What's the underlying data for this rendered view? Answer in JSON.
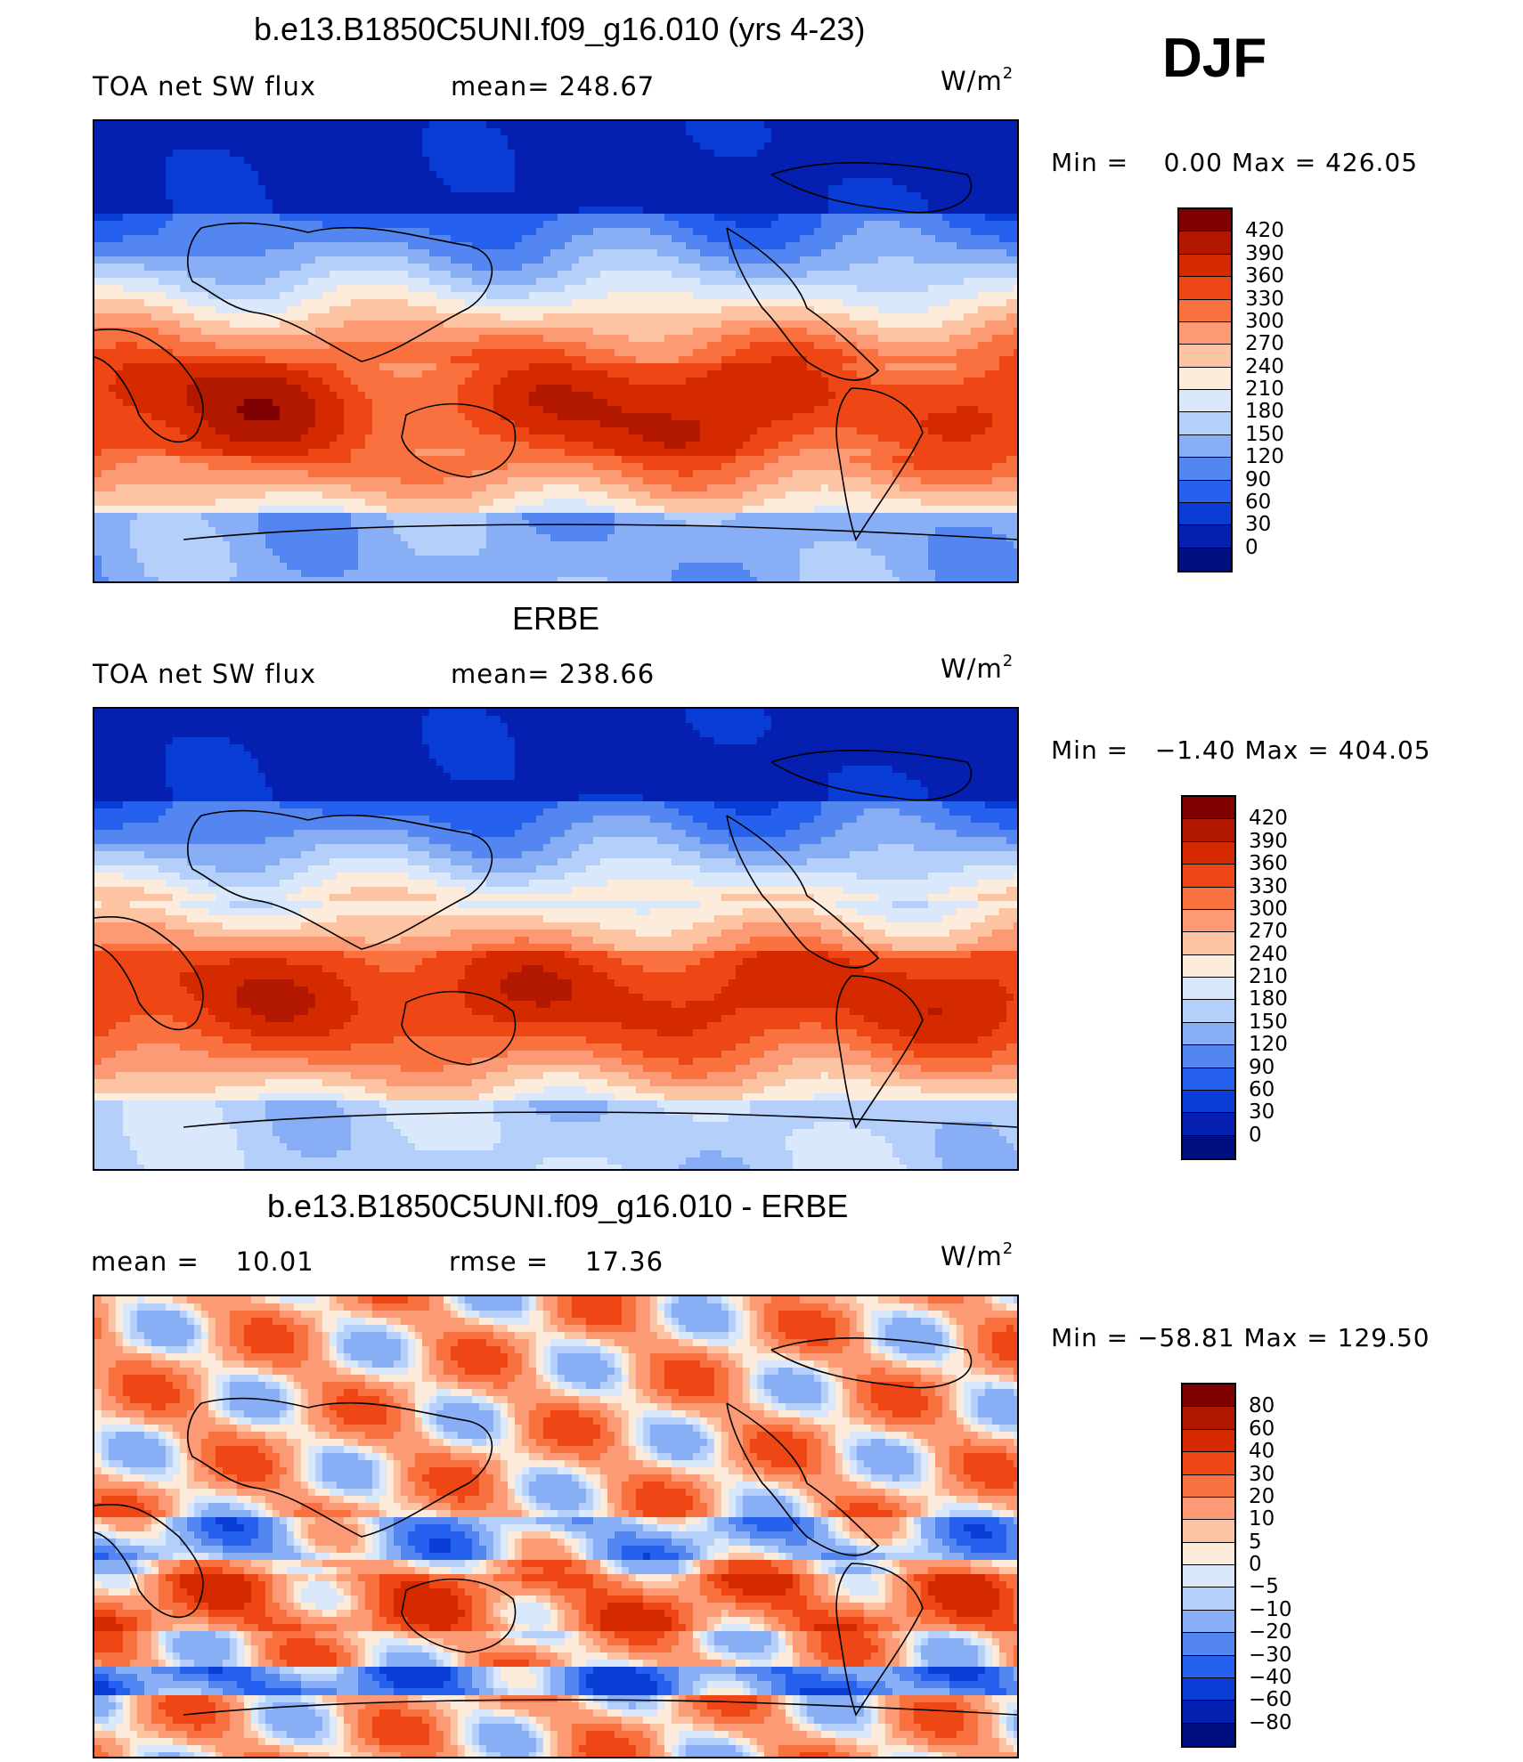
{
  "season": "DJF",
  "units_base": "W/m",
  "units_exp": "2",
  "panels": [
    {
      "title": "b.e13.B1850C5UNI.f09_g16.010 (yrs 4-23)",
      "left_label": "TOA net SW flux",
      "center_label": "mean=  248.67",
      "min_label": "Min =",
      "min_value": "0.00",
      "max_label": "Max =",
      "max_value": "426.05",
      "kind": "abs",
      "colorbar": {
        "labels": [
          "420",
          "390",
          "360",
          "330",
          "300",
          "270",
          "240",
          "210",
          "180",
          "150",
          "120",
          "90",
          "60",
          "30",
          "0"
        ],
        "colors": [
          "#7f0000",
          "#b21800",
          "#d52a00",
          "#ee4715",
          "#f8713e",
          "#fb9a74",
          "#fcc4a3",
          "#fdebdb",
          "#d9e8fb",
          "#b3cffa",
          "#88aff6",
          "#5486f2",
          "#2660ee",
          "#0a3dd6",
          "#0520b0",
          "#000f80"
        ]
      }
    },
    {
      "title": "ERBE",
      "left_label": "TOA net SW flux",
      "center_label": "mean=  238.66",
      "min_label": "Min =",
      "min_value": "−1.40",
      "max_label": "Max =",
      "max_value": "404.05",
      "kind": "abs",
      "colorbar": {
        "labels": [
          "420",
          "390",
          "360",
          "330",
          "300",
          "270",
          "240",
          "210",
          "180",
          "150",
          "120",
          "90",
          "60",
          "30",
          "0"
        ],
        "colors": [
          "#7f0000",
          "#b21800",
          "#d52a00",
          "#ee4715",
          "#f8713e",
          "#fb9a74",
          "#fcc4a3",
          "#fdebdb",
          "#d9e8fb",
          "#b3cffa",
          "#88aff6",
          "#5486f2",
          "#2660ee",
          "#0a3dd6",
          "#0520b0",
          "#000f80"
        ]
      }
    },
    {
      "title": "b.e13.B1850C5UNI.f09_g16.010 - ERBE",
      "left_label": "mean =    10.01",
      "center_label": "rmse =    17.36",
      "min_label": "Min =",
      "min_value": "−58.81",
      "max_label": "Max =",
      "max_value": "129.50",
      "kind": "diff",
      "colorbar": {
        "labels": [
          "80",
          "60",
          "40",
          "30",
          "20",
          "10",
          "5",
          "0",
          "−5",
          "−10",
          "−20",
          "−30",
          "−40",
          "−60",
          "−80"
        ],
        "colors": [
          "#7f0000",
          "#b21800",
          "#d52a00",
          "#ee4715",
          "#f8713e",
          "#fb9a74",
          "#fcc4a3",
          "#fdebdb",
          "#d9e8fb",
          "#b3cffa",
          "#88aff6",
          "#5486f2",
          "#2660ee",
          "#0a3dd6",
          "#0520b0",
          "#000f80"
        ]
      }
    }
  ]
}
